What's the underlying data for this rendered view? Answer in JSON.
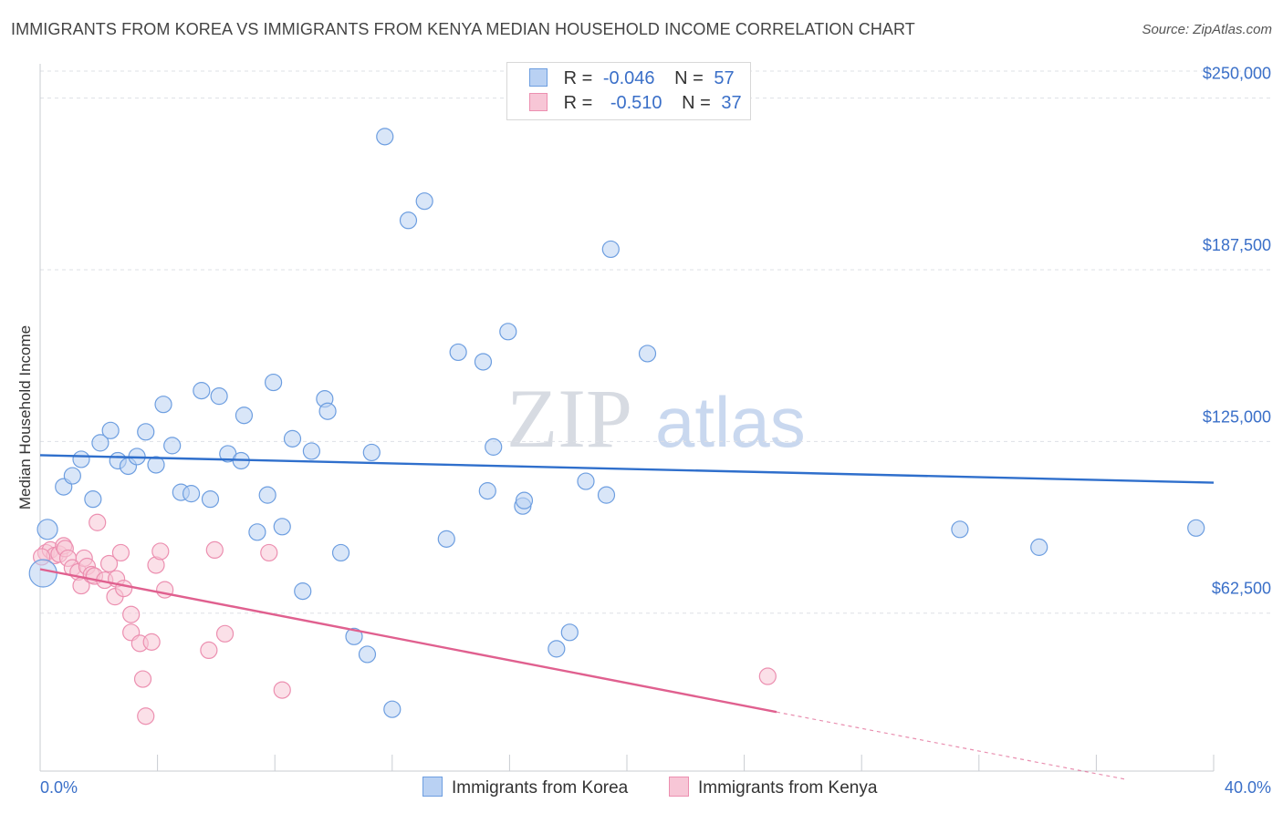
{
  "header": {
    "title": "IMMIGRANTS FROM KOREA VS IMMIGRANTS FROM KENYA MEDIAN HOUSEHOLD INCOME CORRELATION CHART",
    "source": "Source: ZipAtlas.com"
  },
  "legend": {
    "korea": {
      "r_label": "R =",
      "r_value": "-0.046",
      "n_label": "N =",
      "n_value": "57"
    },
    "kenya": {
      "r_label": "R =",
      "r_value": "-0.510",
      "n_label": "N =",
      "n_value": "37"
    }
  },
  "watermark": {
    "zip": "ZIP",
    "atlas": "atlas"
  },
  "colors": {
    "korea": "#6d9ee0",
    "korea_fill": "#b9d1f3",
    "korea_line": "#2f6fcc",
    "kenya": "#ec8fb0",
    "kenya_fill": "#f7c6d6",
    "kenya_line": "#e0608f"
  },
  "chart_data": {
    "type": "scatter",
    "title": "IMMIGRANTS FROM KOREA VS IMMIGRANTS FROM KENYA MEDIAN HOUSEHOLD INCOME CORRELATION CHART",
    "ylabel": "Median Household Income",
    "xlim": [
      0,
      40
    ],
    "ylim": [
      5000,
      262500
    ],
    "x_tick_labels": [
      "0.0%",
      "40.0%"
    ],
    "y_ticks": [
      62500,
      125000,
      187500,
      250000
    ],
    "y_tick_labels": [
      "$62,500",
      "$125,000",
      "$187,500",
      "$250,000"
    ],
    "grid": true,
    "legend_position": "top-center",
    "series": [
      {
        "name": "Immigrants from Korea",
        "trend": {
          "x": [
            0,
            40
          ],
          "y": [
            120000,
            110000
          ]
        },
        "points": [
          [
            0.25,
            93000
          ],
          [
            0.1,
            77000
          ],
          [
            0.8,
            108500
          ],
          [
            1.1,
            112500
          ],
          [
            1.4,
            118500
          ],
          [
            1.8,
            104000
          ],
          [
            2.05,
            124500
          ],
          [
            2.4,
            129000
          ],
          [
            2.65,
            118000
          ],
          [
            3.0,
            116000
          ],
          [
            3.3,
            119500
          ],
          [
            3.6,
            128500
          ],
          [
            3.95,
            116500
          ],
          [
            4.2,
            138500
          ],
          [
            4.5,
            123500
          ],
          [
            4.8,
            106500
          ],
          [
            5.15,
            106000
          ],
          [
            5.5,
            143500
          ],
          [
            5.8,
            104000
          ],
          [
            6.1,
            141500
          ],
          [
            6.4,
            120500
          ],
          [
            6.85,
            118000
          ],
          [
            6.95,
            134500
          ],
          [
            7.4,
            92000
          ],
          [
            7.75,
            105500
          ],
          [
            7.95,
            146500
          ],
          [
            8.25,
            94000
          ],
          [
            8.6,
            126000
          ],
          [
            8.95,
            70500
          ],
          [
            9.25,
            121500
          ],
          [
            9.7,
            140500
          ],
          [
            9.8,
            136000
          ],
          [
            10.25,
            84500
          ],
          [
            10.7,
            54000
          ],
          [
            11.15,
            47500
          ],
          [
            11.3,
            121000
          ],
          [
            11.75,
            236000
          ],
          [
            12.0,
            27500
          ],
          [
            12.55,
            205500
          ],
          [
            13.1,
            212500
          ],
          [
            13.85,
            89500
          ],
          [
            14.25,
            157500
          ],
          [
            15.1,
            154000
          ],
          [
            15.25,
            107000
          ],
          [
            15.45,
            123000
          ],
          [
            15.95,
            165000
          ],
          [
            16.45,
            101500
          ],
          [
            16.5,
            103500
          ],
          [
            17.6,
            49500
          ],
          [
            18.05,
            55500
          ],
          [
            18.6,
            110500
          ],
          [
            19.3,
            105500
          ],
          [
            19.45,
            195000
          ],
          [
            20.7,
            157000
          ],
          [
            31.35,
            93000
          ],
          [
            34.05,
            86500
          ],
          [
            39.4,
            93500
          ]
        ]
      },
      {
        "name": "Immigrants from Kenya",
        "trend": {
          "x": [
            0,
            25.1
          ],
          "y": [
            78500,
            26500
          ]
        },
        "trend_dashed": {
          "x": [
            25.1,
            37
          ],
          "y": [
            26500,
            2000
          ]
        },
        "points": [
          [
            0.2,
            84500
          ],
          [
            0.35,
            85500
          ],
          [
            0.5,
            83500
          ],
          [
            0.65,
            84000
          ],
          [
            0.8,
            87000
          ],
          [
            0.85,
            86000
          ],
          [
            0.95,
            82500
          ],
          [
            1.1,
            79000
          ],
          [
            1.3,
            77500
          ],
          [
            1.4,
            72500
          ],
          [
            1.5,
            82500
          ],
          [
            1.6,
            79500
          ],
          [
            1.75,
            76500
          ],
          [
            1.85,
            76000
          ],
          [
            1.95,
            95500
          ],
          [
            2.2,
            74500
          ],
          [
            2.35,
            80500
          ],
          [
            2.55,
            68500
          ],
          [
            2.6,
            75000
          ],
          [
            2.75,
            84500
          ],
          [
            2.85,
            71500
          ],
          [
            3.1,
            62000
          ],
          [
            3.1,
            55500
          ],
          [
            3.4,
            51500
          ],
          [
            3.5,
            38500
          ],
          [
            3.6,
            25000
          ],
          [
            3.8,
            52000
          ],
          [
            3.95,
            80000
          ],
          [
            4.1,
            85000
          ],
          [
            4.25,
            71000
          ],
          [
            5.75,
            49000
          ],
          [
            5.95,
            85500
          ],
          [
            6.3,
            55000
          ],
          [
            7.8,
            84500
          ],
          [
            8.25,
            34500
          ],
          [
            24.8,
            39500
          ],
          [
            0.05,
            83000
          ]
        ]
      }
    ]
  },
  "bottom_legend": {
    "korea_label": "Immigrants from Korea",
    "kenya_label": "Immigrants from Kenya"
  }
}
